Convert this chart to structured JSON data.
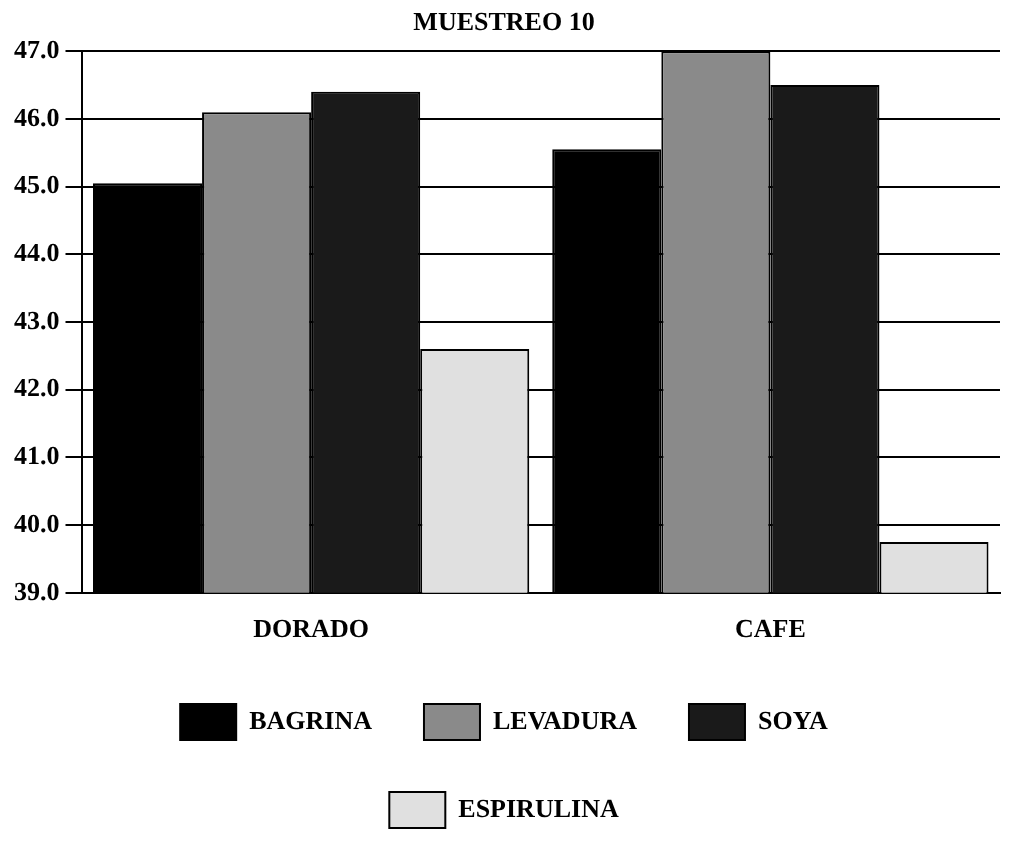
{
  "chart_data": {
    "type": "bar",
    "title": "MUESTREO 10",
    "categories": [
      "DORADO",
      "CAFE"
    ],
    "series": [
      {
        "name": "BAGRINA",
        "color": "#000000",
        "values": [
          45.05,
          45.55
        ]
      },
      {
        "name": "LEVADURA",
        "color": "#8a8a8a",
        "values": [
          46.1,
          47.0
        ]
      },
      {
        "name": "SOYA",
        "color": "#1a1a1a",
        "values": [
          46.4,
          46.5
        ]
      },
      {
        "name": "ESPIRULINA",
        "color": "#e0e0e0",
        "values": [
          42.6,
          39.75
        ]
      }
    ],
    "ylim": [
      39,
      47
    ],
    "yticks": [
      {
        "value": 39,
        "label": "39.0"
      },
      {
        "value": 40,
        "label": "40.0"
      },
      {
        "value": 41,
        "label": "41.0"
      },
      {
        "value": 42,
        "label": "42.0"
      },
      {
        "value": 43,
        "label": "43.0"
      },
      {
        "value": 44,
        "label": "44.0"
      },
      {
        "value": 45,
        "label": "45.0"
      },
      {
        "value": 46,
        "label": "46.0"
      },
      {
        "value": 47,
        "label": "47.0"
      }
    ],
    "grid": "y",
    "legend": "bottom"
  }
}
